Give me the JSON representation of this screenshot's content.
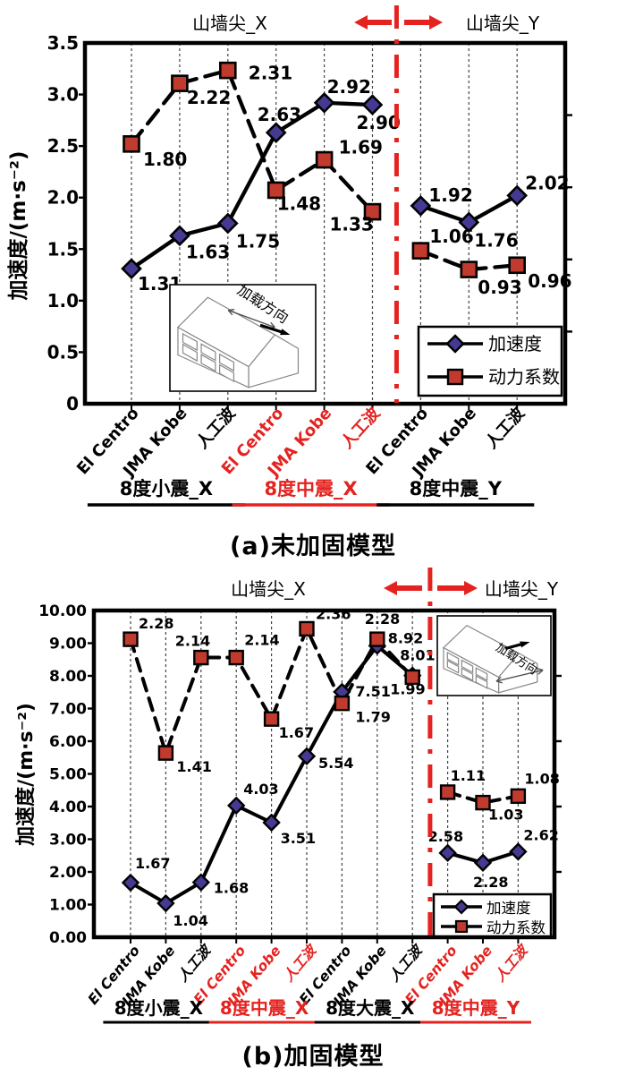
{
  "page": {
    "background": "#ffffff"
  },
  "colors": {
    "black": "#000000",
    "accent_red": "#e42320",
    "diamond_fill": "#453a92",
    "square_fill": "#c03a2e",
    "grid": "#444444",
    "house_line": "#888888"
  },
  "chart_data": [
    {
      "id": "a",
      "type": "line",
      "caption": "(a)未加固模型",
      "wall_title_left": "山墙尖_X",
      "wall_title_right": "山墙尖_Y",
      "ylabel": "加速度/(m·s⁻²)",
      "ylim": [
        0,
        3.5
      ],
      "yticks": [
        {
          "v": 3.5,
          "label": "3.5"
        },
        {
          "v": 3.0,
          "label": "3.0"
        },
        {
          "v": 2.5,
          "label": "2.5"
        },
        {
          "v": 2.0,
          "label": "2.0"
        },
        {
          "v": 1.5,
          "label": "1.5"
        },
        {
          "v": 1.0,
          "label": "1.0"
        },
        {
          "v": 0.5,
          "label": "0.5"
        },
        {
          "v": 0,
          "label": "0"
        }
      ],
      "right_tick_values": [
        0.7,
        1.4,
        2.1,
        2.8
      ],
      "grid": true,
      "categories": [
        {
          "label": "El Centro",
          "color": "black"
        },
        {
          "label": "JMA Kobe",
          "color": "black"
        },
        {
          "label": "人工波",
          "color": "black"
        },
        {
          "label": "El Centro",
          "color": "red"
        },
        {
          "label": "JMA Kobe",
          "color": "red"
        },
        {
          "label": "人工波",
          "color": "red"
        },
        {
          "label": "El Centro",
          "color": "black"
        },
        {
          "label": "JMA Kobe",
          "color": "black"
        },
        {
          "label": "人工波",
          "color": "black"
        }
      ],
      "groups": [
        {
          "label": "8度小震_X",
          "color": "black",
          "from": 0,
          "to": 2
        },
        {
          "label": "8度中震_X",
          "color": "red",
          "from": 3,
          "to": 5
        },
        {
          "label": "8度中震_Y",
          "color": "black",
          "from": 6,
          "to": 8
        }
      ],
      "gap_after": 5,
      "series": [
        {
          "name": "加速度",
          "marker": "diamond",
          "line_style": "solid",
          "plot_scale": 1,
          "values": [
            1.31,
            1.63,
            1.75,
            2.63,
            2.92,
            2.9,
            1.92,
            1.76,
            2.02
          ],
          "labels": [
            "1.31",
            "1.63",
            "1.75",
            "2.63",
            "2.92",
            "2.90",
            "1.92",
            "1.76",
            "2.02"
          ],
          "label_offsets": [
            [
              7,
              24
            ],
            [
              7,
              25
            ],
            [
              9,
              27
            ],
            [
              -21,
              -13
            ],
            [
              3,
              -11
            ],
            [
              -18,
              27
            ],
            [
              9,
              -5
            ],
            [
              6,
              27
            ],
            [
              9,
              -7
            ]
          ]
        },
        {
          "name": "动力系数",
          "marker": "square",
          "line_style": "dashed",
          "plot_scale": 1.4,
          "values": [
            1.8,
            2.22,
            2.31,
            1.48,
            1.69,
            1.33,
            1.06,
            0.93,
            0.96
          ],
          "labels": [
            "1.80",
            "2.22",
            "2.31",
            "1.48",
            "1.69",
            "1.33",
            "1.06",
            "0.93",
            "0.96"
          ],
          "label_offsets": [
            [
              13,
              24
            ],
            [
              8,
              23
            ],
            [
              23,
              10
            ],
            [
              1,
              22
            ],
            [
              16,
              -7
            ],
            [
              -48,
              21
            ],
            [
              10,
              -9
            ],
            [
              10,
              27
            ],
            [
              12,
              25
            ]
          ]
        }
      ],
      "legend": [
        {
          "label": "加速度",
          "marker": "diamond"
        },
        {
          "label": "动力系数",
          "marker": "square"
        }
      ],
      "inset_label": "加载方向"
    },
    {
      "id": "b",
      "type": "line",
      "caption": "(b)加固模型",
      "wall_title_left": "山墙尖_X",
      "wall_title_right": "山墙尖_Y",
      "ylabel": "加速度/(m·s⁻²)",
      "ylim": [
        0,
        10
      ],
      "yticks": [
        {
          "v": 10,
          "label": "10.00"
        },
        {
          "v": 9,
          "label": "9.00"
        },
        {
          "v": 8,
          "label": "8.00"
        },
        {
          "v": 7,
          "label": "7.00"
        },
        {
          "v": 6,
          "label": "6.00"
        },
        {
          "v": 5,
          "label": "5.00"
        },
        {
          "v": 4,
          "label": "4.00"
        },
        {
          "v": 3,
          "label": "3.00"
        },
        {
          "v": 2,
          "label": "2.00"
        },
        {
          "v": 1,
          "label": "1.00"
        },
        {
          "v": 0,
          "label": "0.00"
        }
      ],
      "right_tick_values": [
        2,
        4,
        6,
        8
      ],
      "grid": true,
      "categories": [
        {
          "label": "El Centro",
          "color": "black"
        },
        {
          "label": "JMA Kobe",
          "color": "black"
        },
        {
          "label": "人工波",
          "color": "black"
        },
        {
          "label": "El Centro",
          "color": "red"
        },
        {
          "label": "JMA Kobe",
          "color": "red"
        },
        {
          "label": "人工波",
          "color": "red"
        },
        {
          "label": "El Centro",
          "color": "black"
        },
        {
          "label": "JMA Kobe",
          "color": "black"
        },
        {
          "label": "人工波",
          "color": "black"
        },
        {
          "label": "El Centro",
          "color": "red"
        },
        {
          "label": "JMA Kobe",
          "color": "red"
        },
        {
          "label": "人工波",
          "color": "red"
        }
      ],
      "groups": [
        {
          "label": "8度小震_X",
          "color": "black",
          "from": 0,
          "to": 2
        },
        {
          "label": "8度中震_X",
          "color": "red",
          "from": 3,
          "to": 5
        },
        {
          "label": "8度大震_X",
          "color": "black",
          "from": 6,
          "to": 8
        },
        {
          "label": "8度中震_Y",
          "color": "red",
          "from": 9,
          "to": 11
        }
      ],
      "gap_after": 8,
      "series": [
        {
          "name": "加速度",
          "marker": "diamond",
          "line_style": "solid",
          "plot_scale": 1,
          "values": [
            1.67,
            1.04,
            1.68,
            4.03,
            3.51,
            5.54,
            7.51,
            8.92,
            8.01,
            2.58,
            2.28,
            2.62
          ],
          "labels": [
            "1.67",
            "1.04",
            "1.68",
            "4.03",
            "3.51",
            "5.54",
            "7.51",
            "8.92",
            "8.01",
            "2.58",
            "2.28",
            "2.62"
          ],
          "label_offsets": [
            [
              5,
              -16
            ],
            [
              8,
              25
            ],
            [
              14,
              12
            ],
            [
              8,
              -13
            ],
            [
              10,
              23
            ],
            [
              13,
              13
            ],
            [
              15,
              5
            ],
            [
              12,
              -3
            ],
            [
              -14,
              -17
            ],
            [
              -22,
              -13
            ],
            [
              -11,
              27
            ],
            [
              6,
              -13
            ]
          ]
        },
        {
          "name": "动力系数",
          "marker": "square",
          "line_style": "dashed",
          "plot_scale": 4,
          "values": [
            2.28,
            1.41,
            2.14,
            2.14,
            1.67,
            2.36,
            1.79,
            2.28,
            1.99,
            1.11,
            1.03,
            1.08
          ],
          "labels": [
            "2.28",
            "1.41",
            "2.14",
            "2.14",
            "1.67",
            "2.36",
            "1.79",
            "2.28",
            "1.99",
            "1.11",
            "1.03",
            "1.08"
          ],
          "label_offsets": [
            [
              9,
              -12
            ],
            [
              12,
              21
            ],
            [
              -29,
              -13
            ],
            [
              9,
              -14
            ],
            [
              8,
              21
            ],
            [
              10,
              -11
            ],
            [
              15,
              21
            ],
            [
              -14,
              -17
            ],
            [
              -25,
              19
            ],
            [
              3,
              -13
            ],
            [
              6,
              19
            ],
            [
              7,
              -14
            ]
          ]
        }
      ],
      "legend": [
        {
          "label": "加速度",
          "marker": "diamond"
        },
        {
          "label": "动力系数",
          "marker": "square"
        }
      ],
      "inset_label": "加载方向"
    }
  ]
}
